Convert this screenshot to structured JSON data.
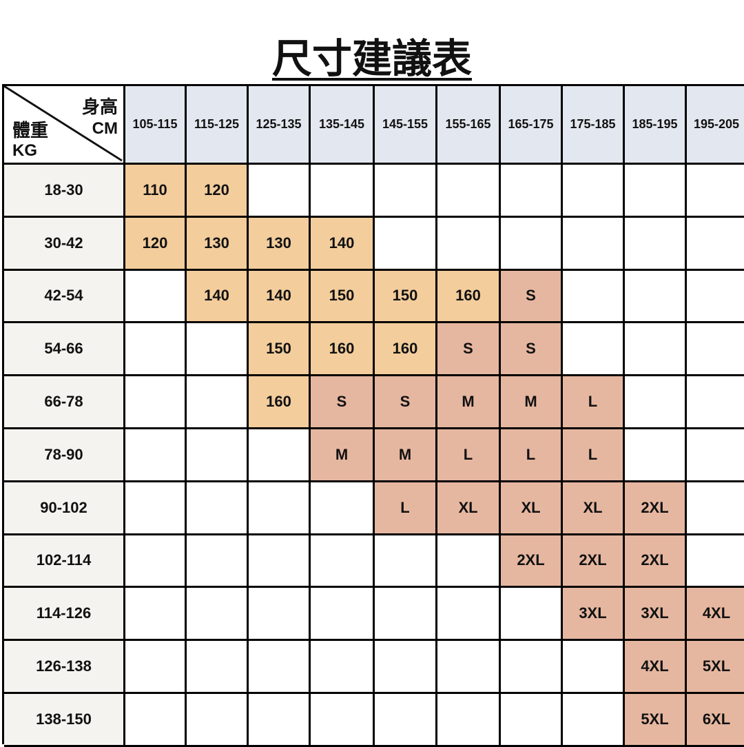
{
  "title": "尺寸建議表",
  "corner": {
    "height_label": "身高",
    "height_unit": "CM",
    "weight_label": "體重",
    "weight_unit": "KG"
  },
  "colors": {
    "header_bg": "#E3E8F0",
    "row_header_bg": "#F4F3EF",
    "kids_size_bg": "#F3CD9C",
    "adult_size_bg": "#E6B7A0",
    "empty_bg": "#FFFFFF"
  },
  "columns": [
    "105-115",
    "115-125",
    "125-135",
    "135-145",
    "145-155",
    "155-165",
    "165-175",
    "175-185",
    "185-195",
    "195-205"
  ],
  "rows": [
    {
      "weight": "18-30",
      "cells": [
        "110",
        "120",
        "",
        "",
        "",
        "",
        "",
        "",
        "",
        ""
      ]
    },
    {
      "weight": "30-42",
      "cells": [
        "120",
        "130",
        "130",
        "140",
        "",
        "",
        "",
        "",
        "",
        ""
      ]
    },
    {
      "weight": "42-54",
      "cells": [
        "",
        "140",
        "140",
        "150",
        "150",
        "160",
        "S",
        "",
        "",
        ""
      ]
    },
    {
      "weight": "54-66",
      "cells": [
        "",
        "",
        "150",
        "160",
        "160",
        "S",
        "S",
        "",
        "",
        ""
      ]
    },
    {
      "weight": "66-78",
      "cells": [
        "",
        "",
        "160",
        "S",
        "S",
        "M",
        "M",
        "L",
        "",
        ""
      ]
    },
    {
      "weight": "78-90",
      "cells": [
        "",
        "",
        "",
        "M",
        "M",
        "L",
        "L",
        "L",
        "",
        ""
      ]
    },
    {
      "weight": "90-102",
      "cells": [
        "",
        "",
        "",
        "",
        "L",
        "XL",
        "XL",
        "XL",
        "2XL",
        ""
      ]
    },
    {
      "weight": "102-114",
      "cells": [
        "",
        "",
        "",
        "",
        "",
        "",
        "2XL",
        "2XL",
        "2XL",
        ""
      ]
    },
    {
      "weight": "114-126",
      "cells": [
        "",
        "",
        "",
        "",
        "",
        "",
        "",
        "3XL",
        "3XL",
        "4XL"
      ]
    },
    {
      "weight": "126-138",
      "cells": [
        "",
        "",
        "",
        "",
        "",
        "",
        "",
        "",
        "4XL",
        "5XL"
      ]
    },
    {
      "weight": "138-150",
      "cells": [
        "",
        "",
        "",
        "",
        "",
        "",
        "",
        "",
        "5XL",
        "6XL"
      ]
    }
  ]
}
